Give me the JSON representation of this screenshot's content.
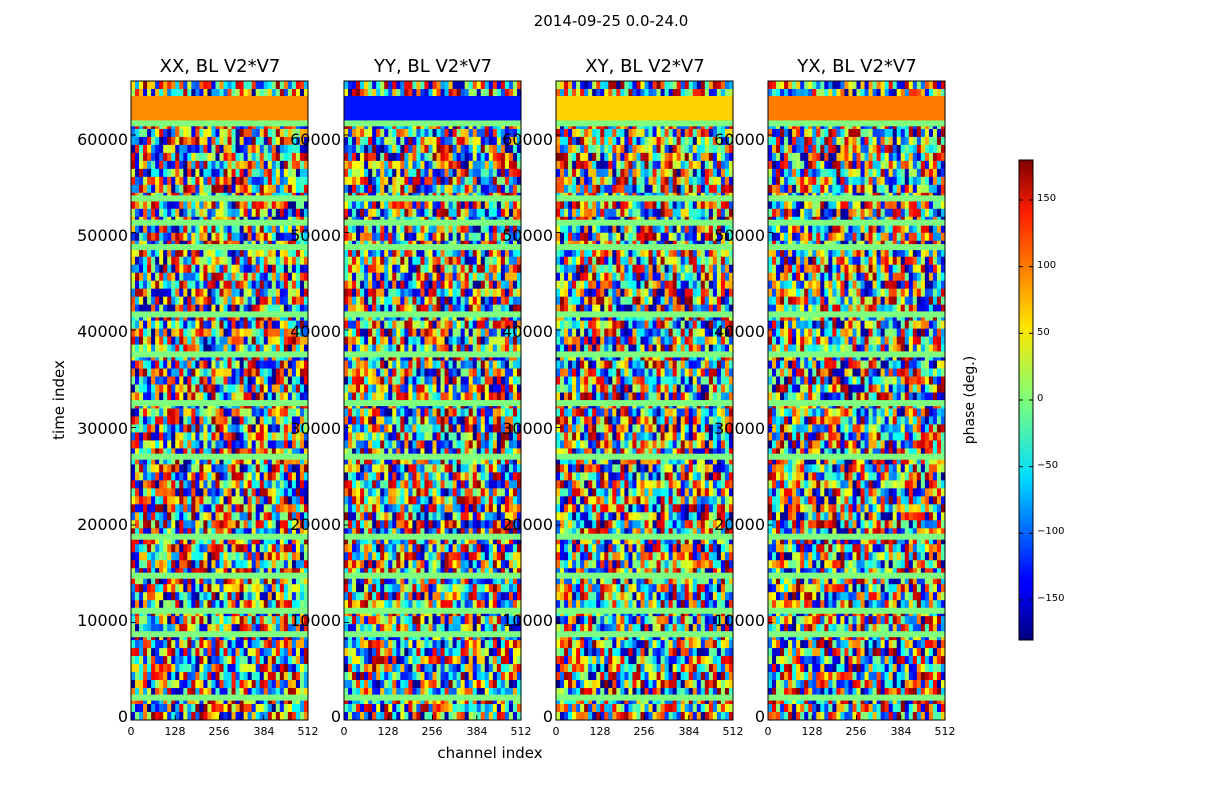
{
  "chart_data": {
    "type": "heatmap",
    "suptitle": "2014-09-25 0.0-24.0",
    "panels": [
      {
        "title": "XX, BL V2*V7",
        "band_color": "#ff8c00"
      },
      {
        "title": "YY, BL V2*V7",
        "band_color": "#0014ff"
      },
      {
        "title": "XY, BL V2*V7",
        "band_color": "#ffd200"
      },
      {
        "title": "YX, BL V2*V7",
        "band_color": "#ff7a00"
      }
    ],
    "xlabel": "channel index",
    "ylabel": "time index",
    "xlim": [
      0,
      512
    ],
    "ylim": [
      0,
      65536
    ],
    "x_ticks": [
      "0",
      "128",
      "256",
      "384",
      "512"
    ],
    "x_tick_values": [
      0,
      128,
      256,
      384,
      512
    ],
    "y_ticks": [
      "0",
      "10000",
      "20000",
      "30000",
      "40000",
      "50000",
      "60000"
    ],
    "y_tick_values": [
      0,
      10000,
      20000,
      30000,
      40000,
      50000,
      60000
    ],
    "colorbar": {
      "label": "phase (deg.)",
      "range": [
        -180,
        180
      ],
      "ticks": [
        "−150",
        "−100",
        "−50",
        "0",
        "50",
        "100",
        "150"
      ],
      "tick_values": [
        -150,
        -100,
        -50,
        0,
        50,
        100,
        150
      ],
      "colormap": "jet"
    },
    "flagged_rows": [
      2300,
      8800,
      11200,
      14800,
      18800,
      27000,
      32500,
      37500,
      41600,
      48500,
      51000,
      53500,
      61200
    ],
    "flag_color": "#7fff7f"
  }
}
